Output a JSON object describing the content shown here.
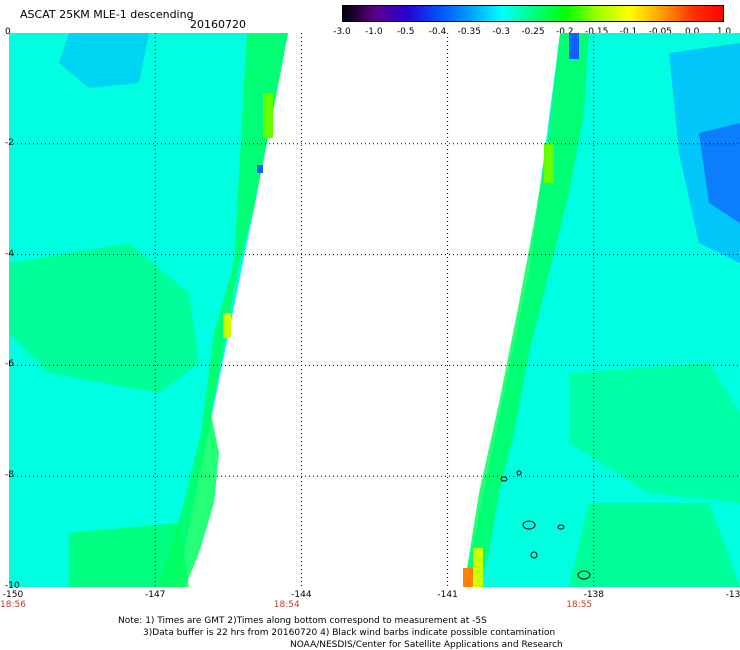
{
  "header": {
    "title": "ASCAT 25KM MLE-1 descending",
    "date": "20160720"
  },
  "colorbar": {
    "labels": [
      "-3.0",
      "-1.0",
      "-0.5",
      "-0.4",
      "-0.35",
      "-0.3",
      "-0.25",
      "-0.2",
      "-0.15",
      "-0.1",
      "-0.05",
      "0.0",
      "1.0"
    ],
    "colors": [
      "#000000",
      "#5a008a",
      "#2a00d0",
      "#0050ff",
      "#00a0ff",
      "#00ffff",
      "#00ff80",
      "#00ff00",
      "#a0ff00",
      "#ffff00",
      "#ffa000",
      "#ff3000",
      "#ff0000"
    ]
  },
  "map": {
    "y_ticks": [
      "0",
      "-2",
      "-4",
      "-6",
      "-8",
      "-10"
    ],
    "x_ticks": [
      "-150",
      "-147",
      "-144",
      "-141",
      "-138",
      "-13"
    ],
    "x_range": [
      -150,
      -135
    ],
    "y_range": [
      -10,
      0
    ],
    "times": [
      {
        "label": "18:56",
        "lon": -150
      },
      {
        "label": "18:54",
        "lon": -144.3
      },
      {
        "label": "18:55",
        "lon": -138.3
      }
    ],
    "swath_colors": {
      "ocean": "#00ffe0",
      "green": "#00ff60",
      "lime": "#66ff00",
      "blue": "#00b8ff",
      "deep": "#1060ff"
    }
  },
  "footer": {
    "note1": "Note: 1) Times are GMT 2)Times along bottom correspond to measurement at -5S",
    "note2": "3)Data buffer is 22 hrs from 20160720 4) Black wind barbs indicate possible contamination",
    "note3": "NOAA/NESDIS/Center for Satellite Applications and Research"
  }
}
